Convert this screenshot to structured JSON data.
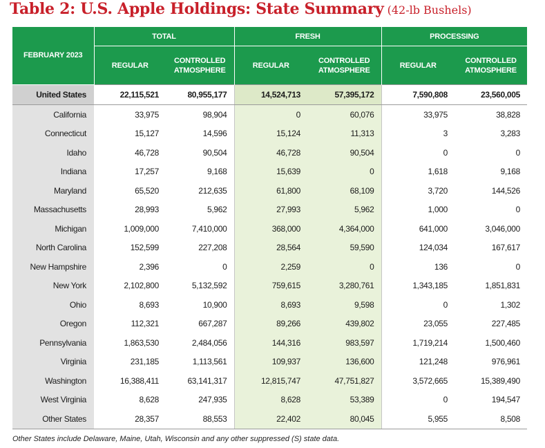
{
  "title": {
    "main": "Table 2: U.S. Apple Holdings: State Summary",
    "sub": "(42-lb Bushels)"
  },
  "header": {
    "corner": "FEBRUARY 2023",
    "groups": [
      "TOTAL",
      "FRESH",
      "PROCESSING"
    ],
    "regular": "REGULAR",
    "ca_line1": "CONTROLLED",
    "ca_line2": "ATMOSPHERE"
  },
  "total_row": {
    "state": "United States",
    "values": [
      "22,115,521",
      "80,955,177",
      "14,524,713",
      "57,395,172",
      "7,590,808",
      "23,560,005"
    ]
  },
  "rows": [
    {
      "state": "California",
      "values": [
        "33,975",
        "98,904",
        "0",
        "60,076",
        "33,975",
        "38,828"
      ]
    },
    {
      "state": "Connecticut",
      "values": [
        "15,127",
        "14,596",
        "15,124",
        "11,313",
        "3",
        "3,283"
      ]
    },
    {
      "state": "Idaho",
      "values": [
        "46,728",
        "90,504",
        "46,728",
        "90,504",
        "0",
        "0"
      ]
    },
    {
      "state": "Indiana",
      "values": [
        "17,257",
        "9,168",
        "15,639",
        "0",
        "1,618",
        "9,168"
      ]
    },
    {
      "state": "Maryland",
      "values": [
        "65,520",
        "212,635",
        "61,800",
        "68,109",
        "3,720",
        "144,526"
      ]
    },
    {
      "state": "Massachusetts",
      "values": [
        "28,993",
        "5,962",
        "27,993",
        "5,962",
        "1,000",
        "0"
      ]
    },
    {
      "state": "Michigan",
      "values": [
        "1,009,000",
        "7,410,000",
        "368,000",
        "4,364,000",
        "641,000",
        "3,046,000"
      ]
    },
    {
      "state": "North Carolina",
      "values": [
        "152,599",
        "227,208",
        "28,564",
        "59,590",
        "124,034",
        "167,617"
      ]
    },
    {
      "state": "New Hampshire",
      "values": [
        "2,396",
        "0",
        "2,259",
        "0",
        "136",
        "0"
      ]
    },
    {
      "state": "New York",
      "values": [
        "2,102,800",
        "5,132,592",
        "759,615",
        "3,280,761",
        "1,343,185",
        "1,851,831"
      ]
    },
    {
      "state": "Ohio",
      "values": [
        "8,693",
        "10,900",
        "8,693",
        "9,598",
        "0",
        "1,302"
      ]
    },
    {
      "state": "Oregon",
      "values": [
        "112,321",
        "667,287",
        "89,266",
        "439,802",
        "23,055",
        "227,485"
      ]
    },
    {
      "state": "Pennsylvania",
      "values": [
        "1,863,530",
        "2,484,056",
        "144,316",
        "983,597",
        "1,719,214",
        "1,500,460"
      ]
    },
    {
      "state": "Virginia",
      "values": [
        "231,185",
        "1,113,561",
        "109,937",
        "136,600",
        "121,248",
        "976,961"
      ]
    },
    {
      "state": "Washington",
      "values": [
        "16,388,411",
        "63,141,317",
        "12,815,747",
        "47,751,827",
        "3,572,665",
        "15,389,490"
      ]
    },
    {
      "state": "West Virginia",
      "values": [
        "8,628",
        "247,935",
        "8,628",
        "53,389",
        "0",
        "194,547"
      ]
    },
    {
      "state": "Other States",
      "values": [
        "28,357",
        "88,553",
        "22,402",
        "80,045",
        "5,955",
        "8,508"
      ]
    }
  ],
  "footnote": "Other States include Delaware, Maine, Utah, Wisconsin and any other suppressed (S) state data.",
  "colors": {
    "title": "#c8202a",
    "header_green": "#1c9a4d",
    "fresh_tint": "#e9f2da",
    "state_column_gray": "#e2e2e2"
  }
}
